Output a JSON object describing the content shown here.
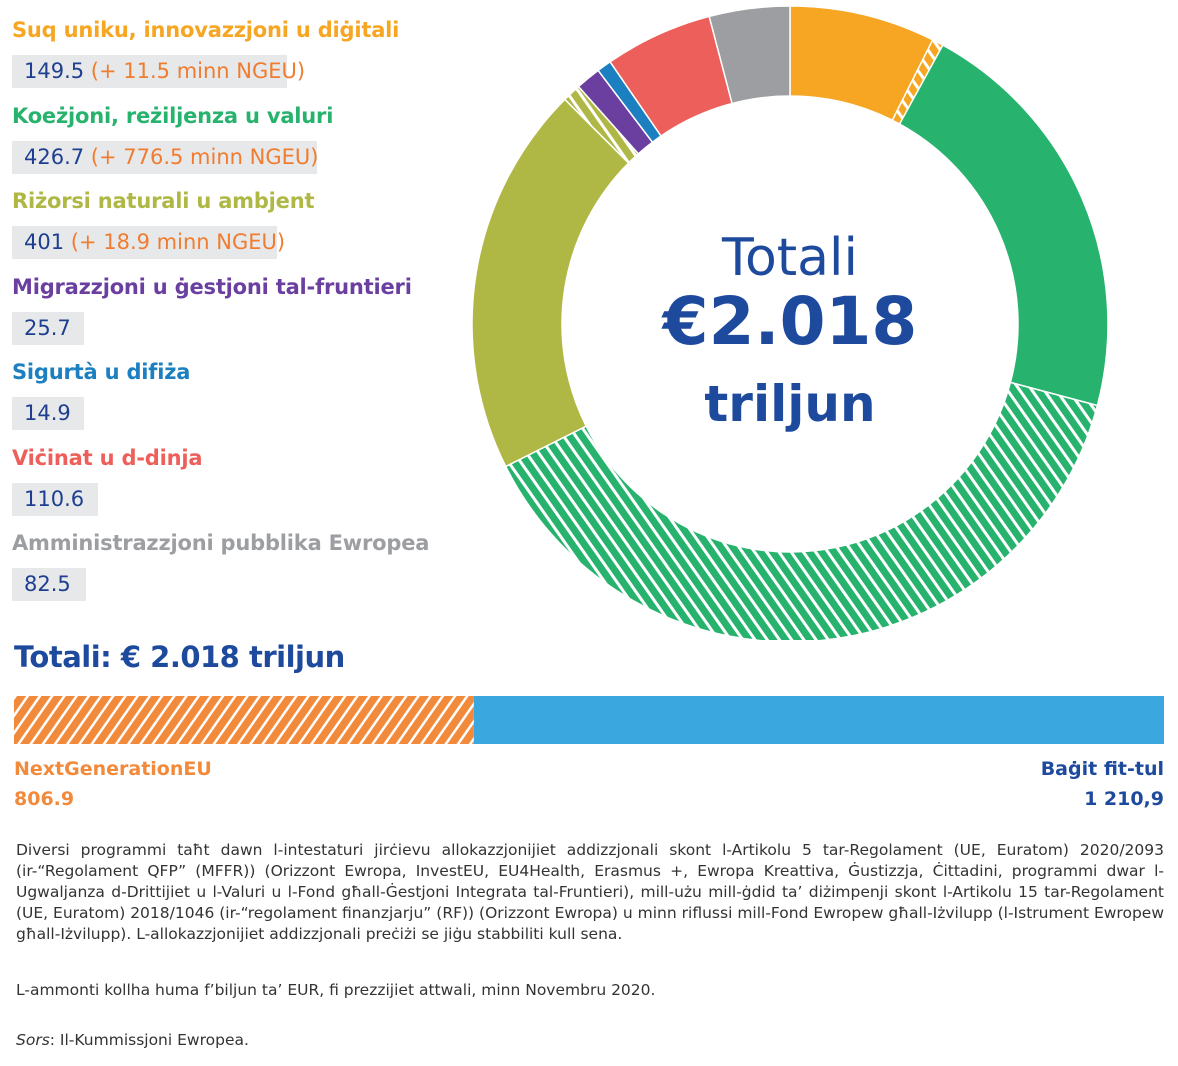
{
  "legend": [
    {
      "label": "Suq uniku, innovazzjoni u diġitali",
      "value": "149.5",
      "extra": " (+ 11.5 minn NGEU)",
      "color": "#f6a623"
    },
    {
      "label": "Koeżjoni, reżiljenza u valuri",
      "value": "426.7",
      "extra": " (+ 776.5 minn NGEU)",
      "color": "#27b36e"
    },
    {
      "label": "Riżorsi naturali u ambjent",
      "value": "401",
      "extra": " (+ 18.9 minn NGEU)",
      "color": "#afb844"
    },
    {
      "label": "Migrazzjoni u ġestjoni tal-fruntieri",
      "value": "25.7",
      "extra": "",
      "color": "#6b3fa0"
    },
    {
      "label": "Sigurtà u difiża",
      "value": "14.9",
      "extra": "",
      "color": "#1b7fc0"
    },
    {
      "label": "Viċinat u d-dinja",
      "value": "110.6",
      "extra": "",
      "color": "#ec5f5a"
    },
    {
      "label": "Amministrazzjoni pubblika Ewropea",
      "value": "82.5",
      "extra": "",
      "color": "#9c9ea1"
    }
  ],
  "center": {
    "line1": "Totali",
    "line2": "€2.018",
    "line3": "triljun"
  },
  "total_line": "Totali: € 2.018 triljun",
  "bar": {
    "ngeu_label": "NextGenerationEU",
    "ngeu_value": "806.9",
    "ngeu_color": "#f28a3c",
    "budget_label": "Baġit fit-tul",
    "budget_value": "1 210,9",
    "budget_color": "#3aa8df"
  },
  "notes": {
    "p1": "Diversi programmi taħt dawn l-intestaturi jirċievu allokazzjonijiet addizzjonali skont l-Artikolu 5 tar-Regolament (UE, Euratom) 2020/2093 (ir-“Regolament QFP” (MFFR)) (Orizzont Ewropa, InvestEU, EU4Health, Erasmus +, Ewropa Kreattiva, Ġustizzja, Ċittadini, programmi dwar l-Ugwaljanza d-Drittijiet u l-Valuri u l-Fond għall-Ġestjoni Integrata tal-Fruntieri), mill-użu mill-ġdid ta’ diżimpenji skont l-Artikolu 15 tar-Regolament (UE, Euratom) 2018/1046 (ir-“regolament finanzjarju” (RF)) (Orizzont Ewropa) u minn riflussi mill-Fond Ewropew għall-Iżvilupp (l-Istrument Ewropew għall-Iżvilupp). L-allokazzjonijiet addizzjonali preċiżi se jiġu stabbiliti kull sena.",
    "p2": "L-ammonti kollha huma f’biljun ta’ EUR, fi prezzijiet attwali, minn Novembru 2020.",
    "source_label": "Sors",
    "source_text": ": Il-Kummissjoni Ewropea."
  },
  "chart_data": [
    {
      "type": "pie",
      "title": "Totali €2.018 triljun",
      "series": [
        {
          "name": "Suq uniku, innovazzjoni u diġitali",
          "values": [
            149.5,
            11.5
          ]
        },
        {
          "name": "Koeżjoni, reżiljenza u valuri",
          "values": [
            426.7,
            776.5
          ]
        },
        {
          "name": "Riżorsi naturali u ambjent",
          "values": [
            401,
            18.9
          ]
        },
        {
          "name": "Migrazzjoni u ġestjoni tal-fruntieri",
          "values": [
            25.7
          ]
        },
        {
          "name": "Sigurtà u difiża",
          "values": [
            14.9
          ]
        },
        {
          "name": "Viċinat u d-dinja",
          "values": [
            110.6
          ]
        },
        {
          "name": "Amministrazzjoni pubblika Ewropea",
          "values": [
            82.5
          ]
        }
      ]
    },
    {
      "type": "bar",
      "title": "Totali: € 2.018 triljun",
      "categories": [
        "NextGenerationEU",
        "Baġit fit-tul"
      ],
      "values": [
        806.9,
        1210.9
      ]
    }
  ]
}
